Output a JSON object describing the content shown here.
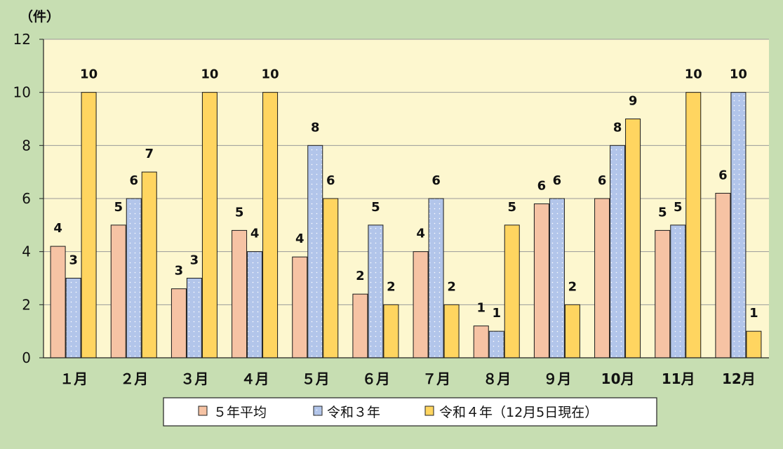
{
  "chart_data": {
    "type": "bar",
    "y_unit": "（件）",
    "ylim": [
      0,
      12
    ],
    "yticks": [
      "0",
      "2",
      "4",
      "6",
      "8",
      "10",
      "12"
    ],
    "grid": true,
    "legend_position": "bottom",
    "categories": [
      "１月",
      "２月",
      "３月",
      "４月",
      "５月",
      "６月",
      "７月",
      "８月",
      "９月",
      "10月",
      "11月",
      "12月"
    ],
    "series": [
      {
        "name": "５年平均",
        "color": "#f6c3a4",
        "pattern": "solid",
        "values": [
          4.2,
          5.0,
          2.6,
          4.8,
          3.8,
          2.4,
          4.0,
          1.2,
          5.8,
          6.0,
          4.8,
          6.2
        ],
        "labels": [
          "4",
          "5",
          "3",
          "5",
          "4",
          "2",
          "4",
          "1",
          "6",
          "6",
          "5",
          "6"
        ]
      },
      {
        "name": "令和３年",
        "color": "#b2c5ea",
        "pattern": "dots",
        "values": [
          3,
          6,
          3,
          4,
          8,
          5,
          6,
          1,
          6,
          8,
          5,
          10
        ],
        "labels": [
          "3",
          "6",
          "3",
          "4",
          "8",
          "5",
          "6",
          "1",
          "6",
          "8",
          "5",
          "10"
        ]
      },
      {
        "name": "令和４年（12月5日現在）",
        "color": "#ffd560",
        "pattern": "solid",
        "values": [
          10,
          7,
          10,
          10,
          6,
          2,
          2,
          5,
          2,
          9,
          10,
          1
        ],
        "labels": [
          "10",
          "7",
          "10",
          "10",
          "6",
          "2",
          "2",
          "5",
          "2",
          "9",
          "10",
          "1"
        ]
      }
    ]
  }
}
